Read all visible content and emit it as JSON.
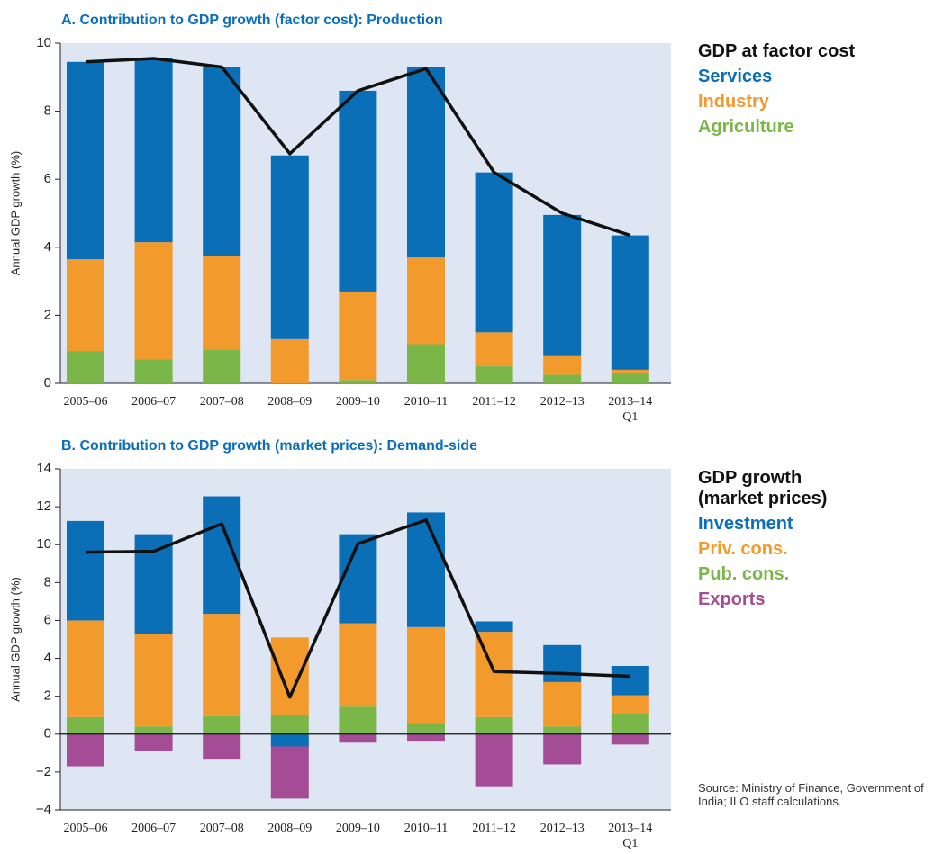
{
  "chart_data": [
    {
      "type": "bar",
      "stacked": true,
      "title": "A. Contribution to GDP growth (factor cost): Production",
      "y_label": "Annual GDP growth (%)",
      "categories": [
        "2005–06",
        "2006–07",
        "2007–08",
        "2008–09",
        "2009–10",
        "2010–11",
        "2011–12",
        "2012–13",
        "2013–14\nQ1"
      ],
      "series": [
        {
          "name": "GDP at factor cost",
          "type": "line",
          "color": "#111111",
          "values": [
            9.45,
            9.55,
            9.3,
            6.75,
            8.6,
            9.25,
            6.2,
            5.0,
            4.35
          ]
        },
        {
          "name": "Services",
          "color": "#0b6fb8",
          "values": [
            5.8,
            5.4,
            5.55,
            5.4,
            5.9,
            5.6,
            4.7,
            4.15,
            3.95
          ]
        },
        {
          "name": "Industry",
          "color": "#f39a2d",
          "values": [
            2.7,
            3.45,
            2.75,
            1.3,
            2.6,
            2.55,
            1.0,
            0.55,
            0.08
          ]
        },
        {
          "name": "Agriculture",
          "color": "#7ab648",
          "values": [
            0.95,
            0.7,
            1.0,
            0,
            0.1,
            1.15,
            0.5,
            0.25,
            0.32
          ]
        }
      ],
      "stack_order": [
        "Agriculture",
        "Industry",
        "Services"
      ],
      "ylim": [
        0,
        10
      ],
      "yticks": [
        0,
        2,
        4,
        6,
        8,
        10
      ],
      "legend": "right"
    },
    {
      "type": "bar",
      "stacked": true,
      "title": "B. Contribution to GDP growth (market prices): Demand-side",
      "y_label": "Annual GDP growth (%)",
      "categories": [
        "2005–06",
        "2006–07",
        "2007–08",
        "2008–09",
        "2009–10",
        "2010–11",
        "2011–12",
        "2012–13",
        "2013–14\nQ1"
      ],
      "series": [
        {
          "name": "GDP growth\n(market prices)",
          "type": "line",
          "color": "#111111",
          "values": [
            9.6,
            9.65,
            11.1,
            1.95,
            10.05,
            11.3,
            3.3,
            3.2,
            3.05
          ]
        },
        {
          "name": "Investment",
          "color": "#0b6fb8",
          "values": [
            5.25,
            5.25,
            6.2,
            -0.65,
            4.7,
            6.05,
            0.55,
            1.95,
            1.55
          ]
        },
        {
          "name": "Priv. cons.",
          "color": "#f39a2d",
          "values": [
            5.1,
            4.9,
            5.4,
            4.1,
            4.4,
            5.05,
            4.5,
            2.35,
            0.95
          ]
        },
        {
          "name": "Pub. cons.",
          "color": "#7ab648",
          "values": [
            0.9,
            0.4,
            0.95,
            1.0,
            1.45,
            0.6,
            0.9,
            0.4,
            1.1
          ]
        },
        {
          "name": "Exports",
          "color": "#a54c96",
          "values": [
            -1.7,
            -0.9,
            -1.3,
            -2.75,
            -0.45,
            -0.35,
            -2.75,
            -1.6,
            -0.55
          ]
        }
      ],
      "stack_order": [
        "Pub. cons.",
        "Priv. cons.",
        "Investment",
        "Exports"
      ],
      "ylim": [
        -4,
        14
      ],
      "yticks": [
        {
          "value": -4,
          "label": "−4"
        },
        {
          "value": -2,
          "label": "−2"
        },
        0,
        2,
        4,
        6,
        8,
        10,
        12,
        14
      ],
      "legend": "right"
    }
  ],
  "source": "Source: Ministry of Finance, Government of India; ILO staff calculations."
}
